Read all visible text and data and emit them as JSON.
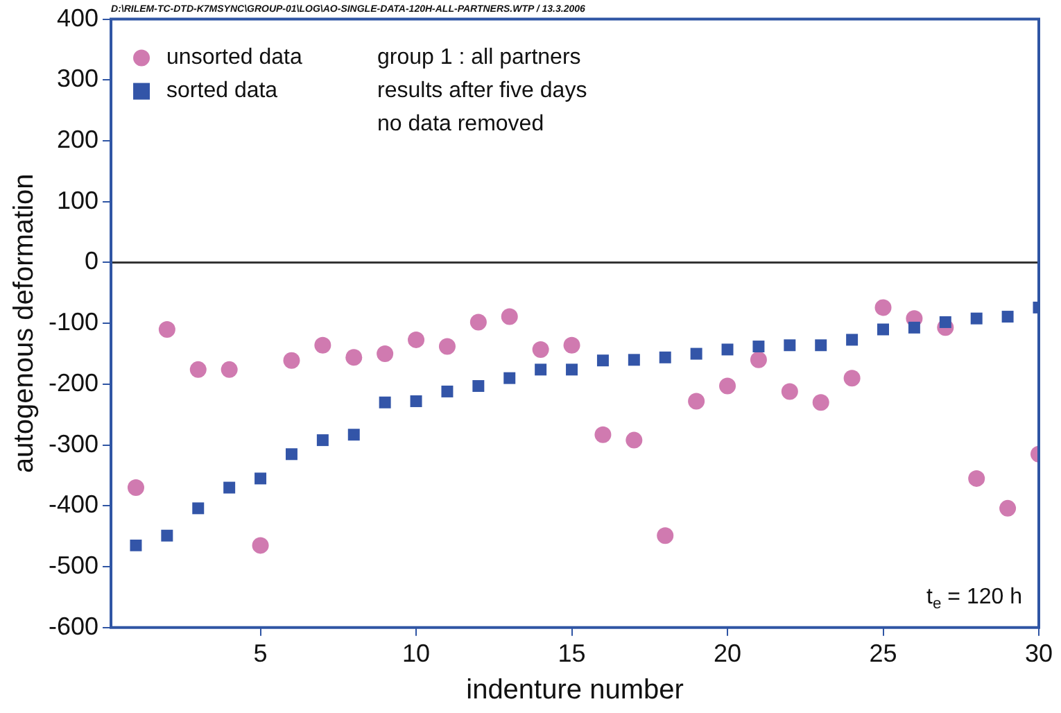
{
  "chart_data": {
    "type": "scatter",
    "xlabel": "indenture number",
    "ylabel": "autogenous deformation",
    "x": [
      1,
      2,
      3,
      4,
      5,
      6,
      7,
      8,
      9,
      10,
      11,
      12,
      13,
      14,
      15,
      16,
      17,
      18,
      19,
      20,
      21,
      22,
      23,
      24,
      25,
      26,
      27,
      28,
      29,
      30
    ],
    "series": [
      {
        "name": "unsorted data",
        "color": "#d07ab0",
        "marker": "circle",
        "values": [
          -370,
          -110,
          -176,
          -176,
          -465,
          -161,
          -136,
          -156,
          -150,
          -127,
          -138,
          -98,
          -89,
          -143,
          -136,
          -283,
          -292,
          -449,
          -228,
          -203,
          -160,
          -212,
          -230,
          -190,
          -74,
          -92,
          -107,
          -355,
          -404,
          -315
        ]
      },
      {
        "name": "sorted data",
        "color": "#3355a8",
        "marker": "square",
        "values": [
          -465,
          -449,
          -404,
          -370,
          -355,
          -315,
          -292,
          -283,
          -230,
          -228,
          -212,
          -203,
          -190,
          -176,
          -176,
          -161,
          -160,
          -156,
          -150,
          -143,
          -138,
          -136,
          -136,
          -127,
          -110,
          -107,
          -98,
          -92,
          -89,
          -74
        ]
      }
    ],
    "xlim": [
      0.2,
      30
    ],
    "xticks": [
      5,
      10,
      15,
      20,
      25,
      30
    ],
    "ylim": [
      -600,
      400
    ],
    "yticks": [
      -600,
      -500,
      -400,
      -300,
      -200,
      -100,
      0,
      100,
      200,
      300,
      400
    ],
    "grid": false,
    "legend": "top left",
    "ref_lines": [
      {
        "axis": "y",
        "value": 0,
        "color": "#333333"
      }
    ],
    "annotations": [
      "D:\\RILEM-TC-DTD-K7MSYNC\\GROUP-01\\LOG\\AO-SINGLE-DATA-120H-ALL-PARTNERS.WTP / 13.3.2006",
      "group 1 : all partners",
      "results after five days",
      "no data removed",
      "t$_{e}$ = 120 h"
    ]
  }
}
